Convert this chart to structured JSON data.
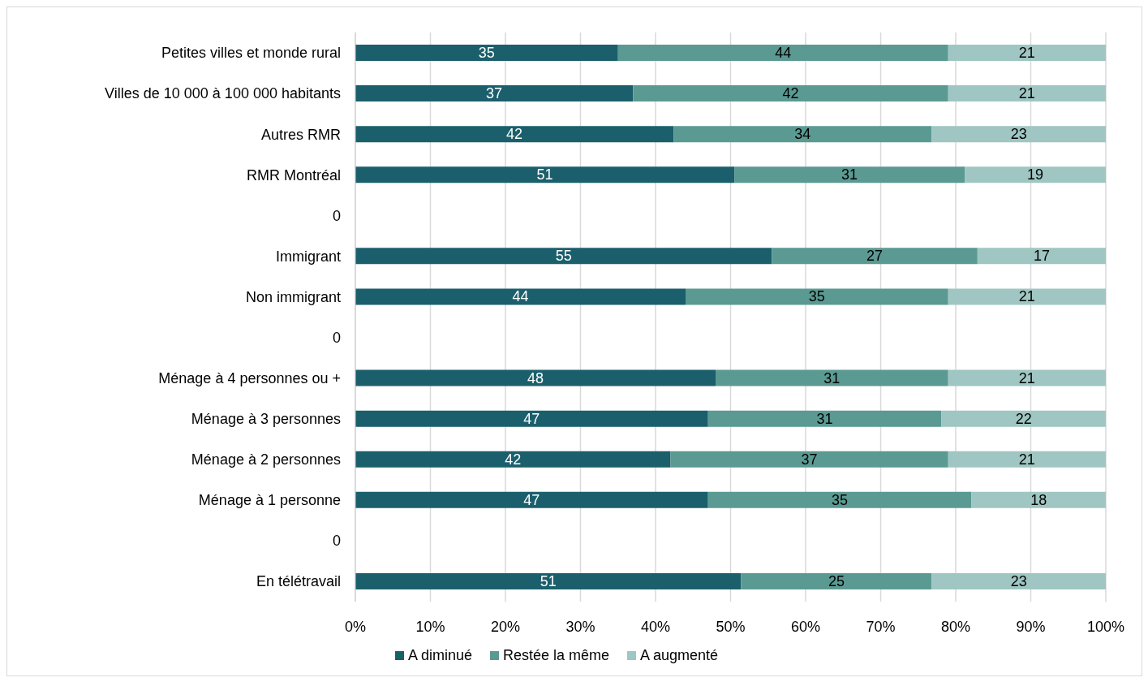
{
  "chart_data": {
    "type": "bar",
    "orientation": "horizontal",
    "stacked": true,
    "categories": [
      "Petites villes et monde rural",
      "Villes de 10 000 à 100 000 habitants",
      "Autres RMR",
      "RMR Montréal",
      "0",
      "Immigrant",
      "Non immigrant",
      "0",
      "Ménage à 4 personnes ou +",
      "Ménage à 3 personnes",
      "Ménage à 2 personnes",
      "Ménage à 1 personne",
      "0",
      "En télétravail"
    ],
    "series": [
      {
        "name": "A diminué",
        "color": "#1b5f6c",
        "values": [
          35,
          37,
          42.4,
          50.5,
          null,
          55.5,
          44,
          null,
          48,
          47,
          42,
          47,
          null,
          51.4
        ],
        "value_labels": [
          "35",
          "37",
          "42",
          "51",
          null,
          "55",
          "44",
          null,
          "48",
          "47",
          "42",
          "47",
          null,
          "51"
        ]
      },
      {
        "name": "Restée la même",
        "color": "#5a9a92",
        "values": [
          44,
          42,
          34.4,
          30.7,
          null,
          27.4,
          35,
          null,
          31,
          31.1,
          37,
          35.1,
          null,
          25.4
        ],
        "value_labels": [
          "44",
          "42",
          "34",
          "31",
          null,
          "27",
          "35",
          null,
          "31",
          "31",
          "37",
          "35",
          null,
          "25"
        ]
      },
      {
        "name": "A augmenté",
        "color": "#9fc6c2",
        "values": [
          21,
          21,
          23.2,
          18.8,
          null,
          17.1,
          21,
          null,
          21,
          21.9,
          21,
          17.9,
          null,
          23.2
        ],
        "value_labels": [
          "21",
          "21",
          "23",
          "19",
          null,
          "17",
          "21",
          null,
          "21",
          "22",
          "21",
          "18",
          null,
          "23"
        ]
      }
    ],
    "xlim": [
      0,
      100
    ],
    "xticks": [
      {
        "value": 0,
        "label": "0%"
      },
      {
        "value": 10,
        "label": "10%"
      },
      {
        "value": 20,
        "label": "20%"
      },
      {
        "value": 30,
        "label": "30%"
      },
      {
        "value": 40,
        "label": "40%"
      },
      {
        "value": 50,
        "label": "50%"
      },
      {
        "value": 60,
        "label": "60%"
      },
      {
        "value": 70,
        "label": "70%"
      },
      {
        "value": 80,
        "label": "80%"
      },
      {
        "value": 90,
        "label": "90%"
      },
      {
        "value": 100,
        "label": "100%"
      }
    ],
    "grid": "x",
    "legend": "bottom"
  }
}
